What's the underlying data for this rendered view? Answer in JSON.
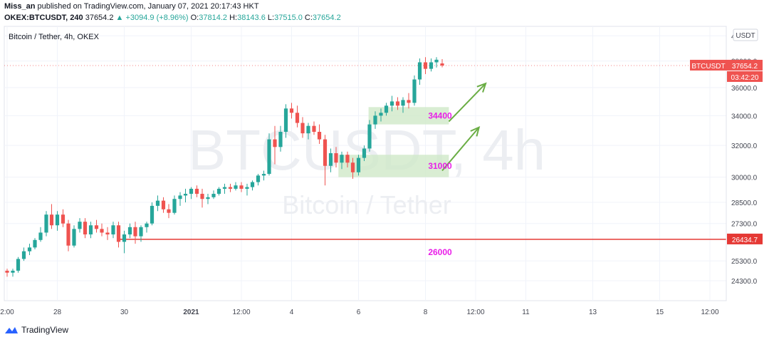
{
  "header": {
    "author": "Miss_an",
    "published_text": "published on TradingView.com, January 07, 2021 20:17:43 HKT",
    "symbol": "OKEX:BTCUSDT, 240",
    "last": "37654.2",
    "change_arrow": "▲",
    "change": "+3094.9 (+8.96%)",
    "o_label": "O:",
    "o_value": "37814.2",
    "h_label": "H:",
    "h_value": "38143.6",
    "l_label": "L:",
    "l_value": "37515.0",
    "c_label": "C:",
    "c_value": "37654.2"
  },
  "footer": {
    "brand": "TradingView",
    "brand_icon": "tradingview-logo-icon"
  },
  "colors": {
    "up": "#26a69a",
    "down": "#ef5350",
    "support": "#e53935",
    "annotation": "#e91ee8",
    "zone": "#cfe8c8",
    "arrow": "#6aad44",
    "watermark": "#eceef2",
    "grid": "#f0f3fa"
  },
  "chart_data": {
    "type": "candlestick",
    "title": "Bitcoin / Tether, 4h, OKEX",
    "watermark_symbol": "BTCUSDT, 4h",
    "watermark_name": "Bitcoin / Tether",
    "currency_label": "USDT",
    "y_scale": "log",
    "ylim": [
      23400,
      40600
    ],
    "y_ticks": [
      40000,
      38000,
      36000,
      34000,
      32000,
      30000,
      28500,
      27300,
      25300,
      24300
    ],
    "x_ticks": [
      {
        "label": "2:00",
        "day": 0
      },
      {
        "label": "28",
        "day": 1.5
      },
      {
        "label": "30",
        "day": 3.5
      },
      {
        "label": "2021",
        "day": 5.5
      },
      {
        "label": "12:00",
        "day": 7
      },
      {
        "label": "4",
        "day": 8.5
      },
      {
        "label": "6",
        "day": 10.5
      },
      {
        "label": "8",
        "day": 12.5
      },
      {
        "label": "12:00",
        "day": 14
      },
      {
        "label": "11",
        "day": 15.5
      },
      {
        "label": "13",
        "day": 17.5
      },
      {
        "label": "15",
        "day": 19.5
      },
      {
        "label": "12:00",
        "day": 21
      }
    ],
    "price_label": {
      "symbol": "BTCUSDT",
      "value": "37654.2",
      "countdown": "03:42:20"
    },
    "support_line": {
      "value": 26434.7,
      "label": "26434.7",
      "start_day": 3.3
    },
    "annotations": [
      {
        "text": "34400",
        "price": 34000
      },
      {
        "text": "31000",
        "price": 30700
      },
      {
        "text": "26000",
        "price": 25750
      }
    ],
    "zones": [
      {
        "from_day": 10.8,
        "to_day": 13.2,
        "low": 33400,
        "high": 34600
      },
      {
        "from_day": 9.9,
        "to_day": 13.2,
        "low": 30000,
        "high": 31400
      }
    ],
    "arrows": [
      {
        "from_day": 13.2,
        "from_price": 33600,
        "to_day": 14.3,
        "to_price": 36300
      },
      {
        "from_day": 13.0,
        "from_price": 30400,
        "to_day": 14.1,
        "to_price": 33200
      }
    ],
    "candles": [
      {
        "d": 0.0,
        "o": 24800,
        "h": 24900,
        "l": 24500,
        "c": 24700
      },
      {
        "d": 0.17,
        "o": 24700,
        "h": 24900,
        "l": 24500,
        "c": 24800
      },
      {
        "d": 0.33,
        "o": 24800,
        "h": 25500,
        "l": 24700,
        "c": 25400
      },
      {
        "d": 0.5,
        "o": 25400,
        "h": 26000,
        "l": 25300,
        "c": 25800
      },
      {
        "d": 0.67,
        "o": 25800,
        "h": 26200,
        "l": 25600,
        "c": 26000
      },
      {
        "d": 0.83,
        "o": 26000,
        "h": 26500,
        "l": 25900,
        "c": 26400
      },
      {
        "d": 1.0,
        "o": 26400,
        "h": 27100,
        "l": 26300,
        "c": 26800
      },
      {
        "d": 1.17,
        "o": 26800,
        "h": 28000,
        "l": 26600,
        "c": 27800
      },
      {
        "d": 1.33,
        "o": 27800,
        "h": 28400,
        "l": 27000,
        "c": 27200
      },
      {
        "d": 1.5,
        "o": 27200,
        "h": 28000,
        "l": 26900,
        "c": 27800
      },
      {
        "d": 1.67,
        "o": 27800,
        "h": 28100,
        "l": 27100,
        "c": 27300
      },
      {
        "d": 1.83,
        "o": 27300,
        "h": 27500,
        "l": 25800,
        "c": 26100
      },
      {
        "d": 2.0,
        "o": 26100,
        "h": 27200,
        "l": 26000,
        "c": 27000
      },
      {
        "d": 2.17,
        "o": 27000,
        "h": 27600,
        "l": 26800,
        "c": 27400
      },
      {
        "d": 2.33,
        "o": 27400,
        "h": 27600,
        "l": 26500,
        "c": 26700
      },
      {
        "d": 2.5,
        "o": 26700,
        "h": 27400,
        "l": 26500,
        "c": 27200
      },
      {
        "d": 2.67,
        "o": 27200,
        "h": 27500,
        "l": 26800,
        "c": 27000
      },
      {
        "d": 2.83,
        "o": 27000,
        "h": 27300,
        "l": 26600,
        "c": 26800
      },
      {
        "d": 3.0,
        "o": 26800,
        "h": 27100,
        "l": 26400,
        "c": 26700
      },
      {
        "d": 3.17,
        "o": 26700,
        "h": 27400,
        "l": 26500,
        "c": 27200
      },
      {
        "d": 3.33,
        "o": 27200,
        "h": 27400,
        "l": 26000,
        "c": 26300
      },
      {
        "d": 3.5,
        "o": 26300,
        "h": 26900,
        "l": 25700,
        "c": 26700
      },
      {
        "d": 3.67,
        "o": 26700,
        "h": 27300,
        "l": 26500,
        "c": 27100
      },
      {
        "d": 3.83,
        "o": 27100,
        "h": 27400,
        "l": 26200,
        "c": 26600
      },
      {
        "d": 4.0,
        "o": 26600,
        "h": 27200,
        "l": 26300,
        "c": 27100
      },
      {
        "d": 4.17,
        "o": 27100,
        "h": 27400,
        "l": 26800,
        "c": 27300
      },
      {
        "d": 4.33,
        "o": 27300,
        "h": 28500,
        "l": 27200,
        "c": 28300
      },
      {
        "d": 4.5,
        "o": 28300,
        "h": 28900,
        "l": 28000,
        "c": 28600
      },
      {
        "d": 4.67,
        "o": 28600,
        "h": 28800,
        "l": 27900,
        "c": 28100
      },
      {
        "d": 4.83,
        "o": 28100,
        "h": 28400,
        "l": 27600,
        "c": 27900
      },
      {
        "d": 5.0,
        "o": 27900,
        "h": 28900,
        "l": 27800,
        "c": 28700
      },
      {
        "d": 5.17,
        "o": 28700,
        "h": 29100,
        "l": 28300,
        "c": 28900
      },
      {
        "d": 5.33,
        "o": 28900,
        "h": 29300,
        "l": 28500,
        "c": 29000
      },
      {
        "d": 5.5,
        "o": 29000,
        "h": 29400,
        "l": 28700,
        "c": 29300
      },
      {
        "d": 5.67,
        "o": 29300,
        "h": 29500,
        "l": 28800,
        "c": 29000
      },
      {
        "d": 5.83,
        "o": 29000,
        "h": 29300,
        "l": 28200,
        "c": 28700
      },
      {
        "d": 6.0,
        "o": 28700,
        "h": 29000,
        "l": 28400,
        "c": 28800
      },
      {
        "d": 6.17,
        "o": 28800,
        "h": 29200,
        "l": 28700,
        "c": 29000
      },
      {
        "d": 6.33,
        "o": 29000,
        "h": 29400,
        "l": 28900,
        "c": 29300
      },
      {
        "d": 6.5,
        "o": 29300,
        "h": 29600,
        "l": 29000,
        "c": 29400
      },
      {
        "d": 6.67,
        "o": 29400,
        "h": 29600,
        "l": 29100,
        "c": 29300
      },
      {
        "d": 6.83,
        "o": 29300,
        "h": 29700,
        "l": 29200,
        "c": 29500
      },
      {
        "d": 7.0,
        "o": 29500,
        "h": 29700,
        "l": 29100,
        "c": 29300
      },
      {
        "d": 7.17,
        "o": 29300,
        "h": 29600,
        "l": 28900,
        "c": 29400
      },
      {
        "d": 7.33,
        "o": 29400,
        "h": 29800,
        "l": 29200,
        "c": 29700
      },
      {
        "d": 7.5,
        "o": 29700,
        "h": 30200,
        "l": 29500,
        "c": 30100
      },
      {
        "d": 7.67,
        "o": 30100,
        "h": 30400,
        "l": 29800,
        "c": 30200
      },
      {
        "d": 7.83,
        "o": 30200,
        "h": 32800,
        "l": 30100,
        "c": 32400
      },
      {
        "d": 8.0,
        "o": 32400,
        "h": 33300,
        "l": 30800,
        "c": 31900
      },
      {
        "d": 8.17,
        "o": 31900,
        "h": 33300,
        "l": 31600,
        "c": 32900
      },
      {
        "d": 8.33,
        "o": 32900,
        "h": 34800,
        "l": 32500,
        "c": 34500
      },
      {
        "d": 8.5,
        "o": 34500,
        "h": 34900,
        "l": 33800,
        "c": 34200
      },
      {
        "d": 8.67,
        "o": 34200,
        "h": 34700,
        "l": 33200,
        "c": 33500
      },
      {
        "d": 8.83,
        "o": 33500,
        "h": 33900,
        "l": 32500,
        "c": 32800
      },
      {
        "d": 9.0,
        "o": 32800,
        "h": 33500,
        "l": 32400,
        "c": 33300
      },
      {
        "d": 9.17,
        "o": 33300,
        "h": 33600,
        "l": 32700,
        "c": 32900
      },
      {
        "d": 9.33,
        "o": 32900,
        "h": 33400,
        "l": 32100,
        "c": 32400
      },
      {
        "d": 9.5,
        "o": 32400,
        "h": 32700,
        "l": 29500,
        "c": 30700
      },
      {
        "d": 9.67,
        "o": 30700,
        "h": 31800,
        "l": 30300,
        "c": 31500
      },
      {
        "d": 9.83,
        "o": 31500,
        "h": 31900,
        "l": 30600,
        "c": 30900
      },
      {
        "d": 10.0,
        "o": 30900,
        "h": 31600,
        "l": 30500,
        "c": 31400
      },
      {
        "d": 10.17,
        "o": 31400,
        "h": 31600,
        "l": 30600,
        "c": 30900
      },
      {
        "d": 10.33,
        "o": 30900,
        "h": 31200,
        "l": 29900,
        "c": 30300
      },
      {
        "d": 10.5,
        "o": 30300,
        "h": 31400,
        "l": 30100,
        "c": 31200
      },
      {
        "d": 10.67,
        "o": 31200,
        "h": 32000,
        "l": 31000,
        "c": 31800
      },
      {
        "d": 10.83,
        "o": 31800,
        "h": 33700,
        "l": 31600,
        "c": 33400
      },
      {
        "d": 11.0,
        "o": 33400,
        "h": 34300,
        "l": 33100,
        "c": 34000
      },
      {
        "d": 11.17,
        "o": 34000,
        "h": 34500,
        "l": 33600,
        "c": 34200
      },
      {
        "d": 11.33,
        "o": 34200,
        "h": 34900,
        "l": 34000,
        "c": 34700
      },
      {
        "d": 11.5,
        "o": 34700,
        "h": 35400,
        "l": 34300,
        "c": 35000
      },
      {
        "d": 11.67,
        "o": 35000,
        "h": 35300,
        "l": 34400,
        "c": 34700
      },
      {
        "d": 11.83,
        "o": 34700,
        "h": 35300,
        "l": 34200,
        "c": 35100
      },
      {
        "d": 12.0,
        "o": 35100,
        "h": 35600,
        "l": 34500,
        "c": 34900
      },
      {
        "d": 12.17,
        "o": 34900,
        "h": 36900,
        "l": 34700,
        "c": 36600
      },
      {
        "d": 12.33,
        "o": 36600,
        "h": 38200,
        "l": 36200,
        "c": 37900
      },
      {
        "d": 12.5,
        "o": 37900,
        "h": 38300,
        "l": 37000,
        "c": 37400
      },
      {
        "d": 12.67,
        "o": 37400,
        "h": 38200,
        "l": 37200,
        "c": 37900
      },
      {
        "d": 12.83,
        "o": 37900,
        "h": 38300,
        "l": 37500,
        "c": 38100
      },
      {
        "d": 13.0,
        "o": 37814.2,
        "h": 38143.6,
        "l": 37515.0,
        "c": 37654.2
      }
    ]
  }
}
